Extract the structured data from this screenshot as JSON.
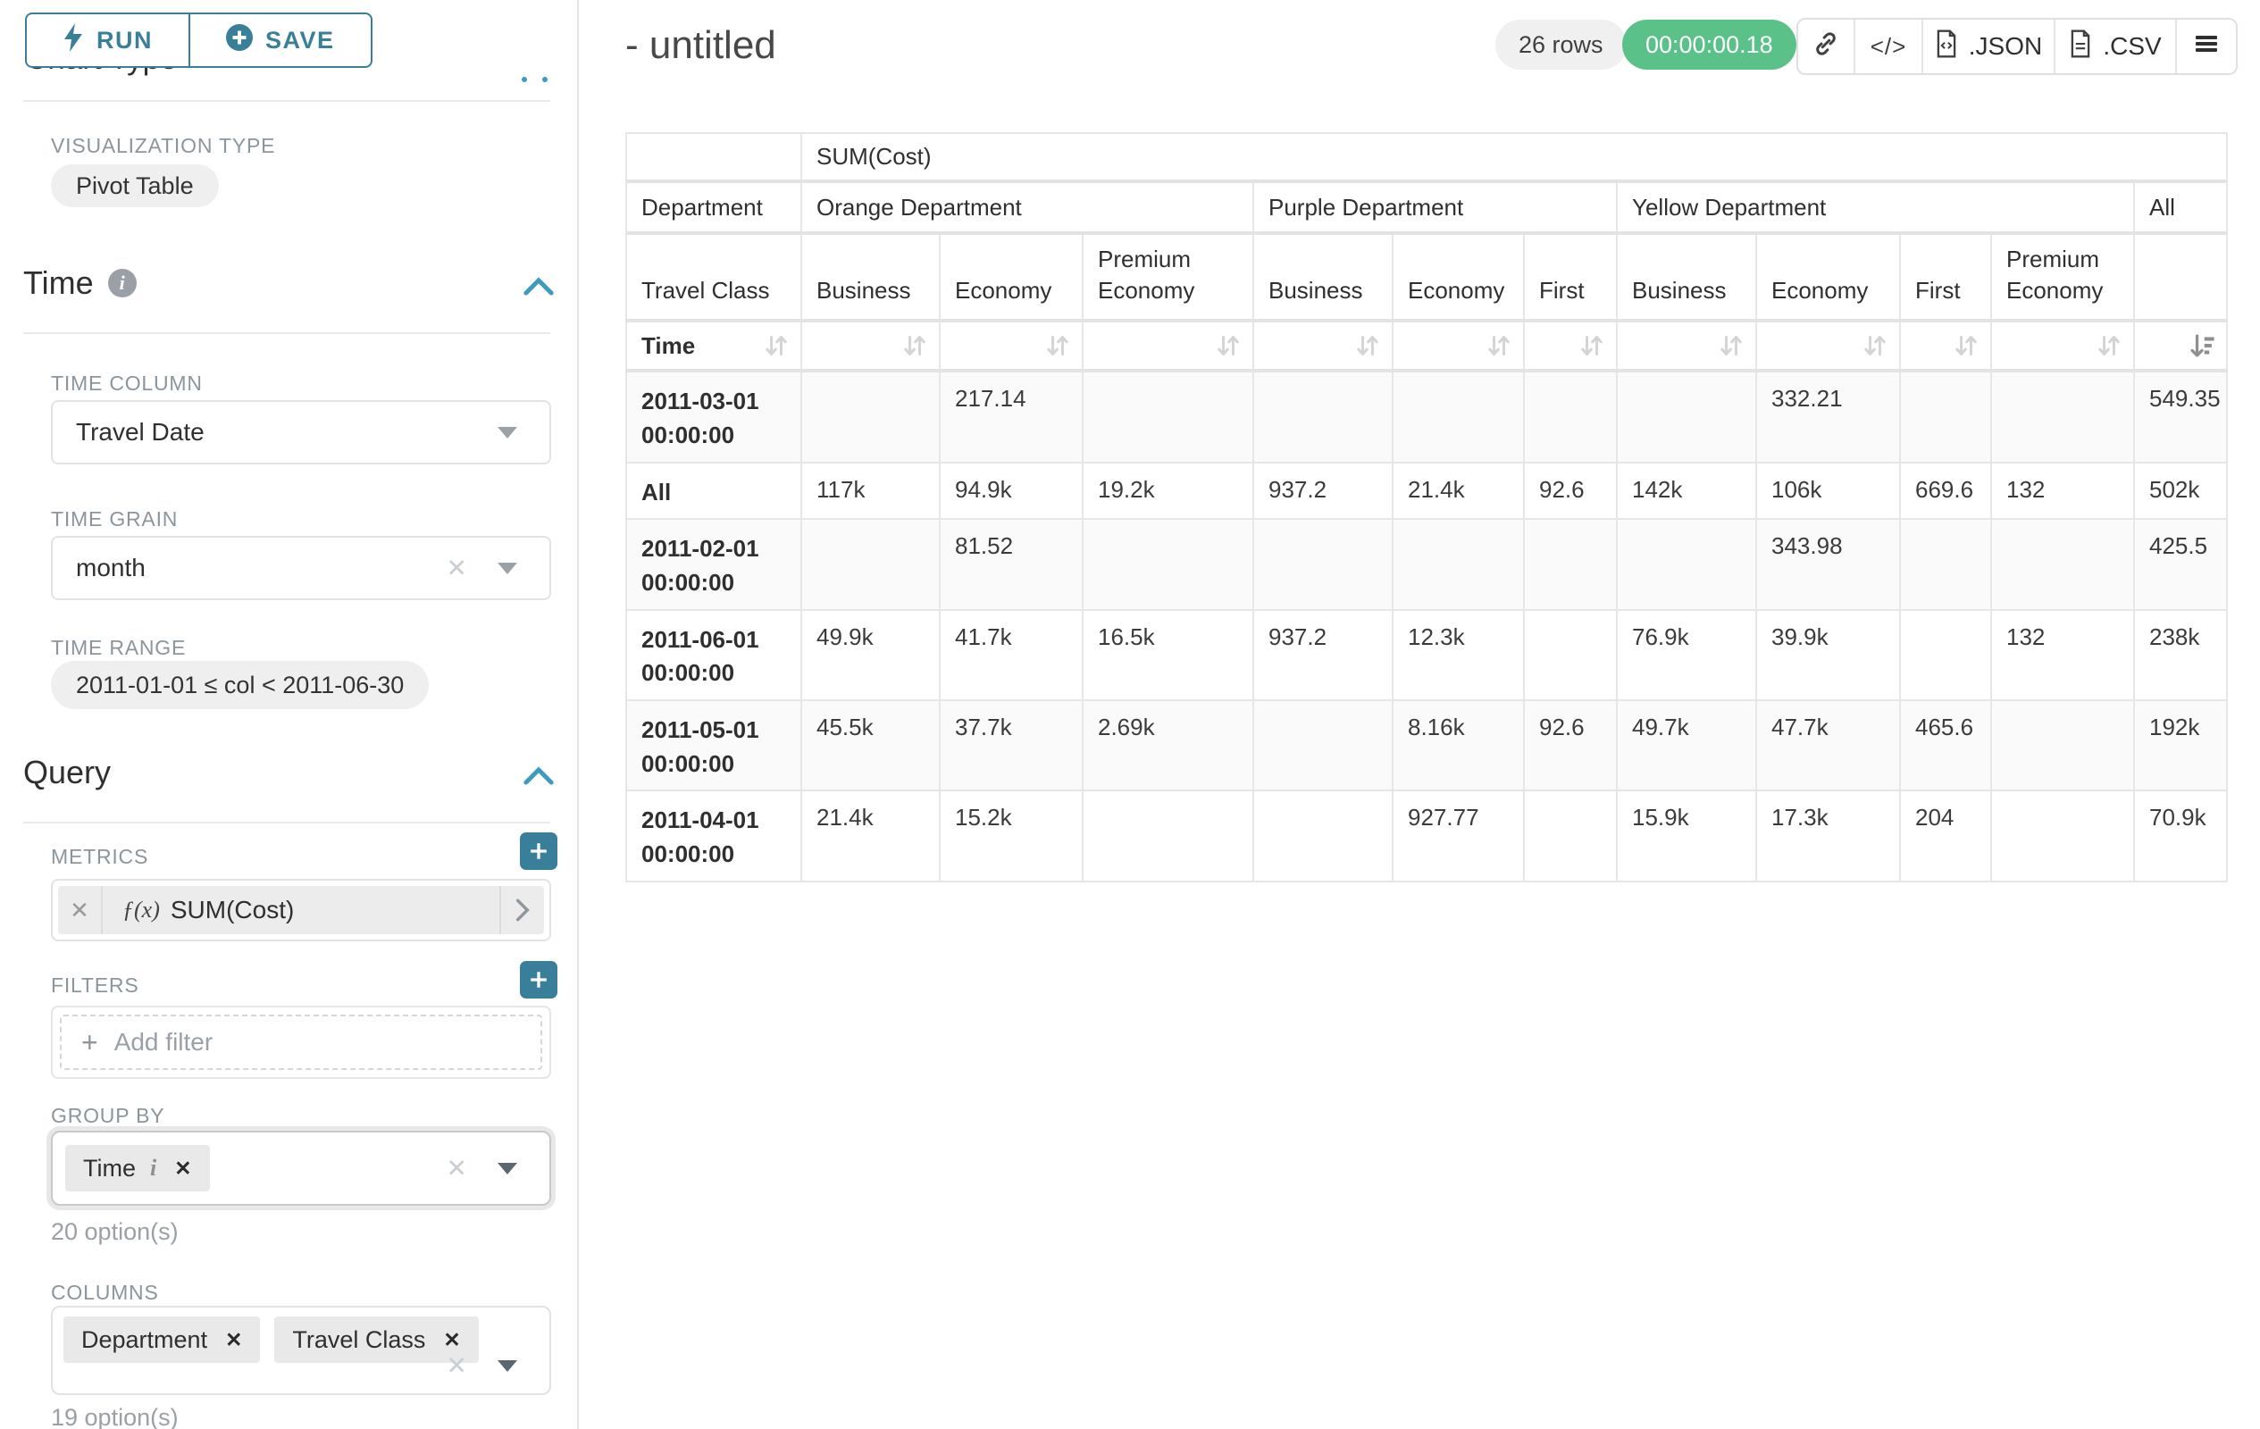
{
  "sidebar": {
    "run_label": "RUN",
    "save_label": "SAVE",
    "chart_type_heading": "Chart Type",
    "visualization_type_label": "VISUALIZATION TYPE",
    "visualization_type_value": "Pivot Table",
    "time_section": {
      "title": "Time",
      "time_column_label": "TIME COLUMN",
      "time_column_value": "Travel Date",
      "time_grain_label": "TIME GRAIN",
      "time_grain_value": "month",
      "time_range_label": "TIME RANGE",
      "time_range_value": "2011-01-01 ≤ col < 2011-06-30"
    },
    "query_section": {
      "title": "Query",
      "metrics_label": "METRICS",
      "metric_prefix": "ƒ(x)",
      "metric_value": "SUM(Cost)",
      "filters_label": "FILTERS",
      "add_filter_label": "Add filter",
      "group_by_label": "GROUP BY",
      "group_by_values": [
        "Time"
      ],
      "group_by_options_hint": "20 option(s)",
      "columns_label": "COLUMNS",
      "columns_values": [
        "Department",
        "Travel Class"
      ],
      "columns_options_hint": "19 option(s)"
    }
  },
  "header": {
    "title": "- untitled",
    "rows_badge": "26 rows",
    "timer_badge": "00:00:00.18",
    "json_label": ".JSON",
    "csv_label": ".CSV",
    "code_icon_label": "</>"
  },
  "icons": {
    "run": "lightning-icon",
    "save": "plus-circle-icon",
    "sections": "chevron-up-icon",
    "share": "link-icon",
    "embed": "code-icon",
    "export_json": "file-code-icon",
    "export_csv": "file-text-icon",
    "more": "hamburger-menu-icon",
    "sort": "sort-arrows-icon",
    "sort_desc": "sort-descending-icon"
  },
  "colors": {
    "accent_teal": "#3a7f9a",
    "success_green": "#5ac189",
    "chevron_blue": "#3d9ac1",
    "stripe_gray": "#fafafa"
  },
  "table": {
    "metric_header": "SUM(Cost)",
    "department_header": "Department",
    "travel_class_header": "Travel Class",
    "time_header": "Time",
    "groups": [
      {
        "label": "Orange Department",
        "cols": [
          "Business",
          "Economy",
          "Premium Economy"
        ]
      },
      {
        "label": "Purple Department",
        "cols": [
          "Business",
          "Economy",
          "First"
        ]
      },
      {
        "label": "Yellow Department",
        "cols": [
          "Business",
          "Economy",
          "First",
          "Premium Economy"
        ]
      },
      {
        "label": "All",
        "cols": [
          ""
        ]
      }
    ],
    "rows": [
      {
        "label": "2011-03-01 00:00:00",
        "values": [
          "",
          "217.14",
          "",
          "",
          "",
          "",
          "",
          "332.21",
          "",
          "",
          "549.35"
        ]
      },
      {
        "label": "All",
        "values": [
          "117k",
          "94.9k",
          "19.2k",
          "937.2",
          "21.4k",
          "92.6",
          "142k",
          "106k",
          "669.6",
          "132",
          "502k"
        ]
      },
      {
        "label": "2011-02-01 00:00:00",
        "values": [
          "",
          "81.52",
          "",
          "",
          "",
          "",
          "",
          "343.98",
          "",
          "",
          "425.5"
        ]
      },
      {
        "label": "2011-06-01 00:00:00",
        "values": [
          "49.9k",
          "41.7k",
          "16.5k",
          "937.2",
          "12.3k",
          "",
          "76.9k",
          "39.9k",
          "",
          "132",
          "238k"
        ]
      },
      {
        "label": "2011-05-01 00:00:00",
        "values": [
          "45.5k",
          "37.7k",
          "2.69k",
          "",
          "8.16k",
          "92.6",
          "49.7k",
          "47.7k",
          "465.6",
          "",
          "192k"
        ]
      },
      {
        "label": "2011-04-01 00:00:00",
        "values": [
          "21.4k",
          "15.2k",
          "",
          "",
          "927.77",
          "",
          "15.9k",
          "17.3k",
          "204",
          "",
          "70.9k"
        ]
      }
    ]
  }
}
